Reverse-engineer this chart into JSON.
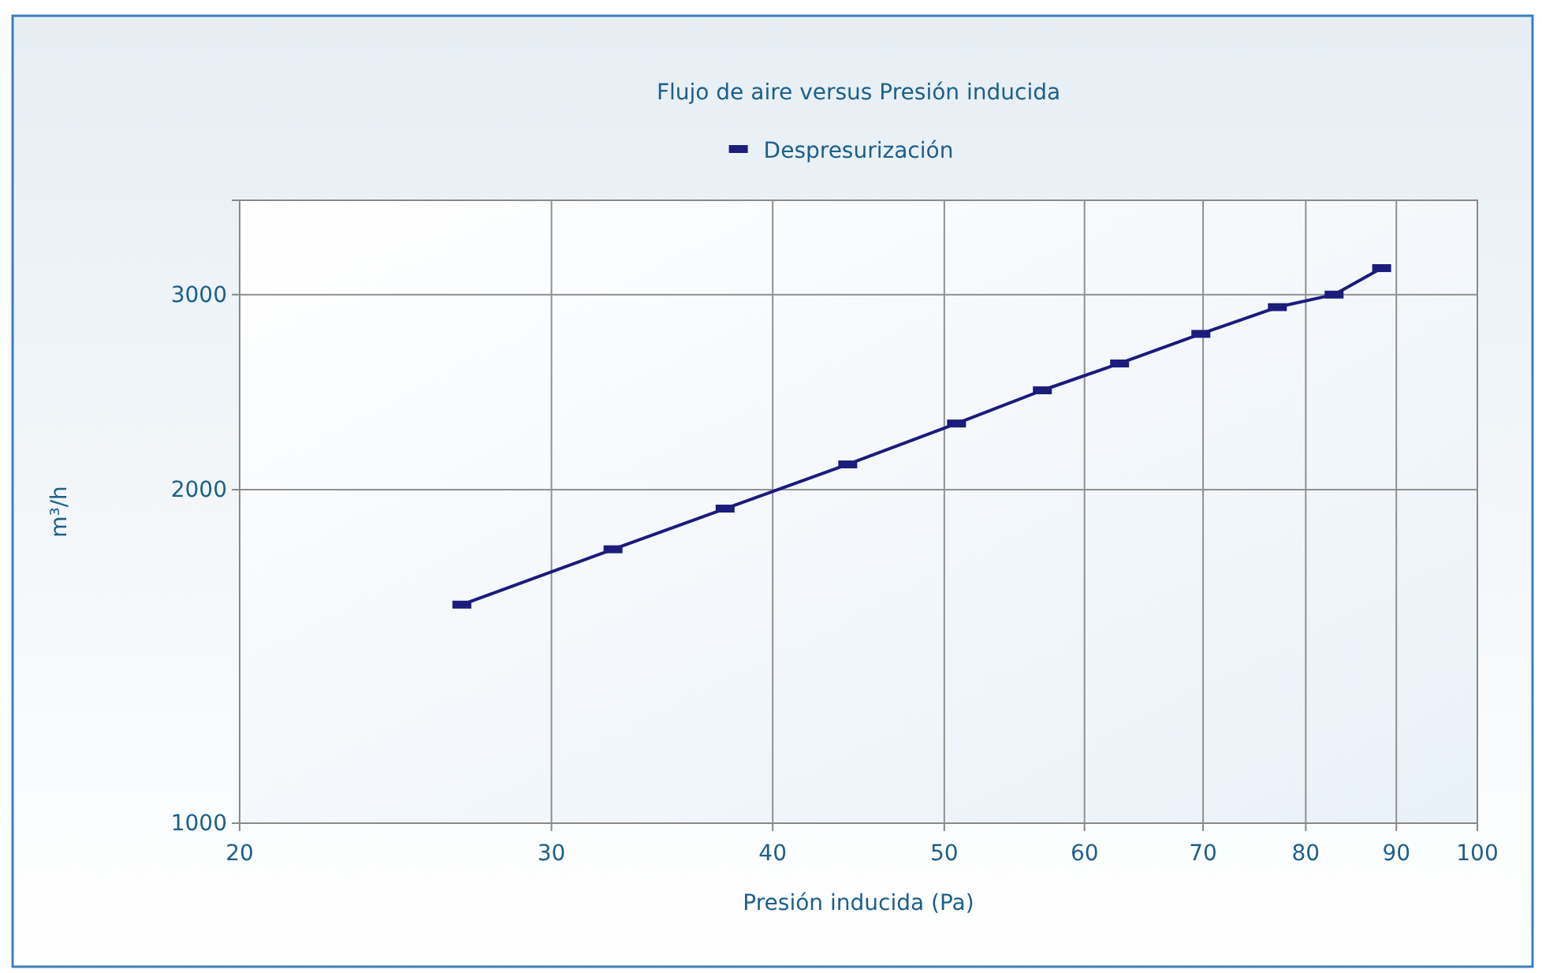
{
  "chart_data": {
    "type": "line",
    "title": "Flujo de aire versus Presión inducida",
    "xlabel": "Presión inducida (Pa)",
    "ylabel": "m³/h",
    "log": "xy",
    "xlim": [
      20,
      100
    ],
    "xticks": [
      20,
      30,
      40,
      50,
      60,
      70,
      80,
      90,
      100
    ],
    "ylim": [
      1000,
      3650
    ],
    "yticks": [
      1000,
      2000,
      3000
    ],
    "grid": true,
    "legend": "top",
    "marker": "square",
    "line_style": "solid",
    "series": [
      {
        "name": "Despresurización",
        "color": "#1c1c7c",
        "x": [
          26.7,
          32.5,
          37.6,
          44.1,
          50.8,
          56.8,
          62.8,
          69.8,
          77.1,
          83.0,
          88.3
        ],
        "values": [
          1575,
          1767,
          1923,
          2108,
          2295,
          2459,
          2600,
          2765,
          2923,
          3000,
          3170
        ]
      }
    ]
  }
}
